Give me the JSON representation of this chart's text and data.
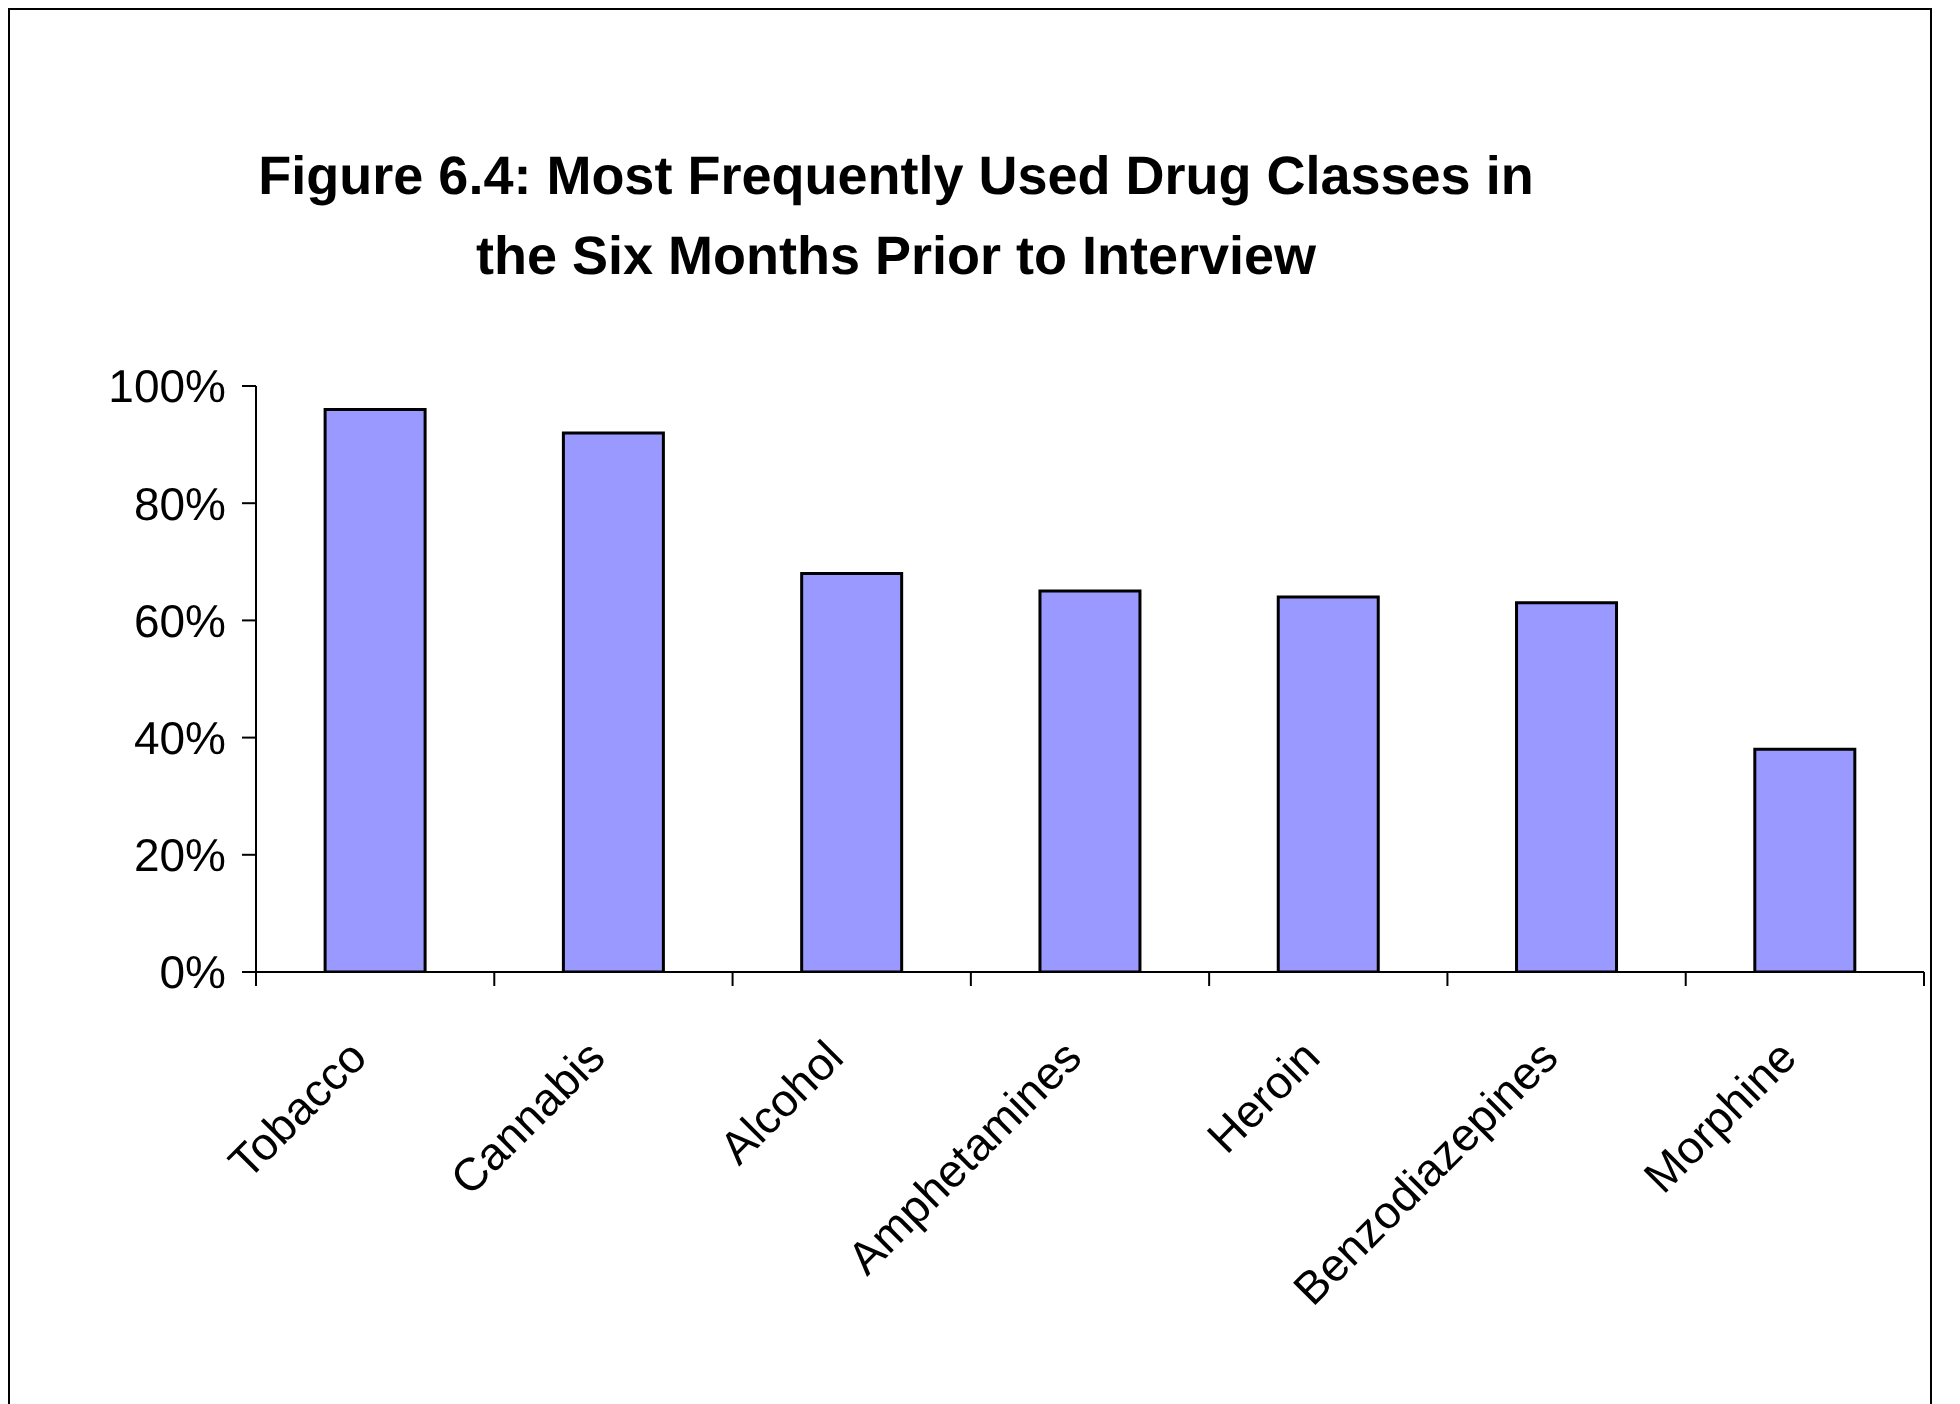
{
  "chart_data": {
    "type": "bar",
    "title": "Figure 6.4: Most Frequently Used Drug Classes in the Six Months Prior to Interview",
    "categories": [
      "Tobacco",
      "Cannabis",
      "Alcohol",
      "Amphetamines",
      "Heroin",
      "Benzodiazepines",
      "Morphine"
    ],
    "values": [
      96,
      92,
      68,
      65,
      64,
      63,
      38
    ],
    "color": "#9999ff",
    "ylim": [
      0,
      100
    ],
    "yticks": [
      {
        "value": 0,
        "label": "0%"
      },
      {
        "value": 20,
        "label": "20%"
      },
      {
        "value": 40,
        "label": "40%"
      },
      {
        "value": 60,
        "label": "60%"
      },
      {
        "value": 80,
        "label": "80%"
      },
      {
        "value": 100,
        "label": "100%"
      }
    ]
  }
}
